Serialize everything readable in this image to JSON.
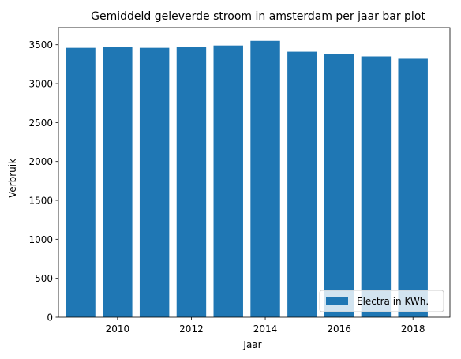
{
  "chart_data": {
    "type": "bar",
    "title": "Gemiddeld geleverde stroom in amsterdam per jaar bar plot",
    "xlabel": "Jaar",
    "ylabel": "Verbruik",
    "x": [
      2009,
      2010,
      2011,
      2012,
      2013,
      2014,
      2015,
      2016,
      2017,
      2018
    ],
    "series": [
      {
        "name": "Electra in KWh.",
        "color": "#1f77b4",
        "values": [
          3460,
          3470,
          3460,
          3470,
          3490,
          3550,
          3410,
          3380,
          3350,
          3320
        ]
      }
    ],
    "xlim": [
      2008.4,
      2019.0
    ],
    "ylim": [
      0,
      3720
    ],
    "xticks": [
      2010,
      2012,
      2014,
      2016,
      2018
    ],
    "yticks": [
      0,
      500,
      1000,
      1500,
      2000,
      2500,
      3000,
      3500
    ],
    "bar_width": 0.8,
    "grid": false,
    "legend_position": "lower right"
  }
}
